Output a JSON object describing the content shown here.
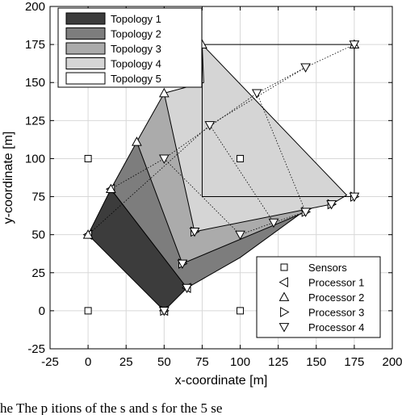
{
  "chart_data": {
    "type": "scatter",
    "title": "",
    "xlabel": "x-coordinate [m]",
    "ylabel": "y-coordinate [m]",
    "xlim": [
      -25,
      200
    ],
    "ylim": [
      -25,
      200
    ],
    "xticks": [
      -25,
      0,
      25,
      50,
      75,
      100,
      125,
      150,
      175,
      200
    ],
    "yticks": [
      -25,
      0,
      25,
      50,
      75,
      100,
      125,
      150,
      175,
      200
    ],
    "xtick_labels": [
      "-25",
      "0",
      "25",
      "50",
      "75",
      "100",
      "125",
      "150",
      "175",
      "200"
    ],
    "ytick_labels": [
      "-25",
      "0",
      "25",
      "50",
      "75",
      "100",
      "125",
      "150",
      "175",
      "200"
    ],
    "grid": true,
    "topologies": [
      {
        "name": "Topology 1",
        "fill": "#3c3c3c",
        "corners": [
          [
            0,
            50
          ],
          [
            50,
            0
          ],
          [
            65,
            15
          ],
          [
            15,
            80
          ]
        ]
      },
      {
        "name": "Topology 2",
        "fill": "#7d7d7d",
        "corners": [
          [
            15,
            80
          ],
          [
            65,
            15
          ],
          [
            100,
            35
          ],
          [
            155,
            75
          ],
          [
            32,
            111
          ]
        ]
      },
      {
        "name": "Topology 3",
        "fill": "#ababab",
        "corners": [
          [
            32,
            111
          ],
          [
            62,
            31
          ],
          [
            143,
            65
          ],
          [
            160,
            75
          ],
          [
            50,
            143
          ]
        ]
      },
      {
        "name": "Topology 4",
        "fill": "#d5d5d5",
        "corners": [
          [
            50,
            143
          ],
          [
            70,
            52
          ],
          [
            160,
            70
          ],
          [
            170,
            76
          ],
          [
            75,
            175
          ],
          [
            76,
            150
          ]
        ]
      },
      {
        "name": "Topology 5",
        "fill": "#ffffff",
        "corners": [
          [
            75,
            175
          ],
          [
            175,
            175
          ],
          [
            175,
            75
          ],
          [
            75,
            75
          ]
        ]
      }
    ],
    "legend_topology": {
      "placement": "top-left",
      "entries": [
        "Topology 1",
        "Topology 2",
        "Topology 3",
        "Topology 4",
        "Topology 5"
      ]
    },
    "series": [
      {
        "name": "Sensors",
        "marker": "square",
        "points": [
          [
            0,
            100
          ],
          [
            100,
            100
          ],
          [
            0,
            0
          ],
          [
            100,
            0
          ]
        ]
      },
      {
        "name": "Processor 1",
        "marker": "triangle-left",
        "points": [
          [
            50,
            0
          ],
          [
            65,
            15
          ],
          [
            0,
            50
          ],
          [
            15,
            80
          ]
        ]
      },
      {
        "name": "Processor 2",
        "marker": "triangle-up",
        "points": [
          [
            0,
            50
          ],
          [
            15,
            80
          ],
          [
            32,
            111
          ],
          [
            50,
            143
          ],
          [
            75,
            175
          ],
          [
            175,
            175
          ]
        ]
      },
      {
        "name": "Processor 3",
        "marker": "triangle-right",
        "points": [
          [
            50,
            0
          ],
          [
            62,
            31
          ],
          [
            70,
            52
          ],
          [
            143,
            65
          ],
          [
            160,
            70
          ],
          [
            175,
            75
          ]
        ]
      },
      {
        "name": "Processor 4",
        "marker": "triangle-down",
        "points": [
          [
            50,
            0
          ],
          [
            65,
            15
          ],
          [
            62,
            31
          ],
          [
            70,
            52
          ],
          [
            100,
            50
          ],
          [
            122,
            58
          ],
          [
            143,
            65
          ],
          [
            160,
            70
          ],
          [
            175,
            75
          ],
          [
            50,
            100
          ],
          [
            80,
            122
          ],
          [
            111,
            143
          ],
          [
            143,
            160
          ],
          [
            175,
            175
          ]
        ]
      }
    ],
    "legend_markers": {
      "placement": "bottom-right",
      "entries": [
        "Sensors",
        "Processor 1",
        "Processor 2",
        "Processor 3",
        "Processor 4"
      ]
    },
    "dotted_links": [
      [
        [
          0,
          50
        ],
        [
          80,
          122
        ],
        [
          143,
          160
        ],
        [
          175,
          175
        ]
      ],
      [
        [
          15,
          80
        ],
        [
          50,
          100
        ],
        [
          111,
          143
        ],
        [
          143,
          160
        ]
      ],
      [
        [
          50,
          100
        ],
        [
          100,
          50
        ],
        [
          122,
          58
        ]
      ],
      [
        [
          80,
          122
        ],
        [
          122,
          58
        ],
        [
          143,
          65
        ]
      ],
      [
        [
          111,
          143
        ],
        [
          143,
          65
        ]
      ]
    ]
  },
  "caption": "he    The   p  itions  of  the  s  and  s  for  the  5  se"
}
